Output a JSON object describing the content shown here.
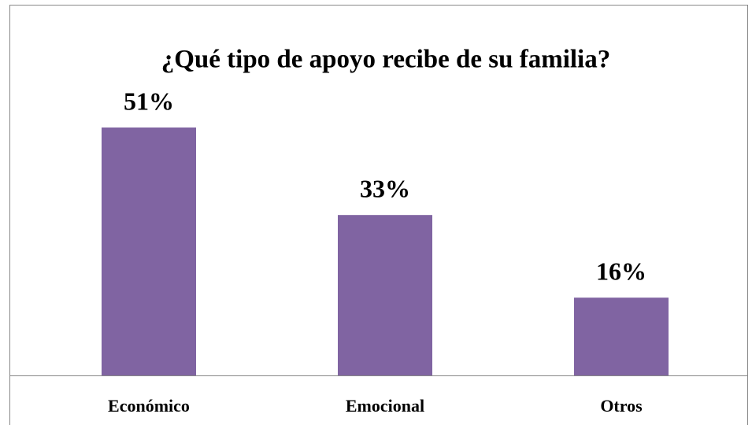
{
  "chart_data": {
    "type": "bar",
    "title": "¿Qué tipo de apoyo recibe de su familia?",
    "categories": [
      "Económico",
      "Emocional",
      "Otros"
    ],
    "values": [
      51,
      33,
      16
    ],
    "value_labels": [
      "51%",
      "33%",
      "16%"
    ],
    "color": "#8064a2"
  }
}
